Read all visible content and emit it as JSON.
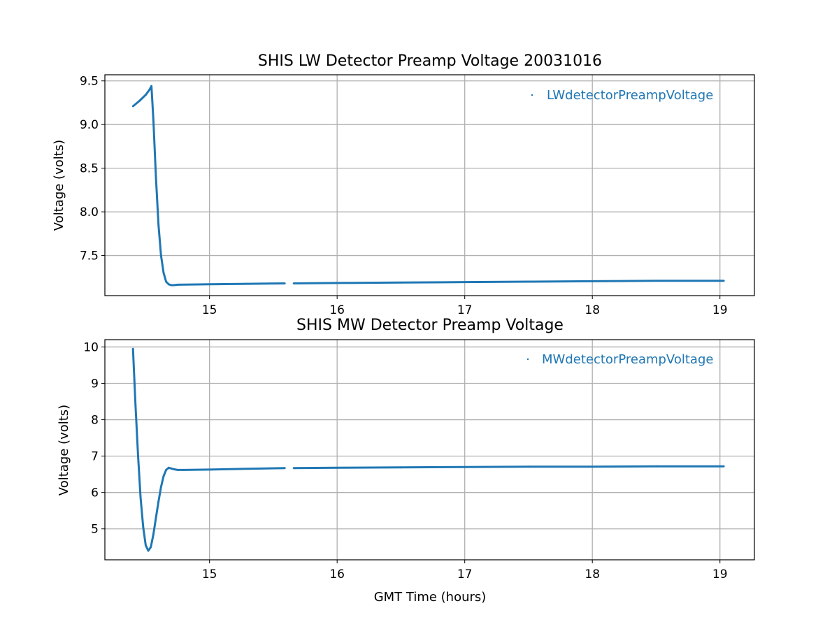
{
  "figure": {
    "colors": {
      "series": "#1f77b4",
      "grid": "#b0b0b0",
      "axes": "#000000",
      "background": "#ffffff"
    }
  },
  "chart_data": [
    {
      "type": "scatter",
      "title": "SHIS LW Detector Preamp Voltage 20031016",
      "xlabel": "",
      "ylabel": "Voltage (volts)",
      "xlim": [
        14.18,
        19.27
      ],
      "ylim": [
        7.04,
        9.57
      ],
      "xticks": [
        15,
        16,
        17,
        18,
        19
      ],
      "yticks": [
        7.5,
        8.0,
        8.5,
        9.0,
        9.5
      ],
      "xtick_labels": [
        "15",
        "16",
        "17",
        "18",
        "19"
      ],
      "ytick_labels": [
        "7.5",
        "8.0",
        "8.5",
        "9.0",
        "9.5"
      ],
      "grid": true,
      "legend_position": "top-right",
      "series": [
        {
          "name": "LWdetectorPreampVoltage",
          "color": "#1f77b4",
          "gaps": [
            [
              15.59,
              15.66
            ]
          ],
          "x": [
            14.4,
            14.45,
            14.5,
            14.53,
            14.545,
            14.56,
            14.58,
            14.6,
            14.62,
            14.64,
            14.66,
            14.68,
            14.7,
            14.72,
            14.75,
            15.0,
            15.3,
            15.59,
            15.66,
            16.0,
            16.5,
            17.0,
            17.5,
            18.0,
            18.5,
            19.03
          ],
          "y": [
            9.21,
            9.27,
            9.34,
            9.4,
            9.44,
            9.05,
            8.4,
            7.85,
            7.5,
            7.3,
            7.2,
            7.17,
            7.16,
            7.16,
            7.165,
            7.17,
            7.175,
            7.18,
            7.18,
            7.185,
            7.19,
            7.195,
            7.2,
            7.205,
            7.21,
            7.21
          ],
          "band": 0.018
        }
      ]
    },
    {
      "type": "scatter",
      "title": "SHIS MW Detector Preamp Voltage",
      "xlabel": "GMT Time (hours)",
      "ylabel": "Voltage (volts)",
      "xlim": [
        14.18,
        19.27
      ],
      "ylim": [
        4.15,
        10.2
      ],
      "xticks": [
        15,
        16,
        17,
        18,
        19
      ],
      "yticks": [
        5,
        6,
        7,
        8,
        9,
        10
      ],
      "xtick_labels": [
        "15",
        "16",
        "17",
        "18",
        "19"
      ],
      "ytick_labels": [
        "5",
        "6",
        "7",
        "8",
        "9",
        "10"
      ],
      "grid": true,
      "legend_position": "top-right",
      "series": [
        {
          "name": "MWdetectorPreampVoltage",
          "color": "#1f77b4",
          "gaps": [
            [
              15.59,
              15.66
            ]
          ],
          "x": [
            14.4,
            14.42,
            14.44,
            14.46,
            14.48,
            14.5,
            14.52,
            14.54,
            14.56,
            14.58,
            14.6,
            14.62,
            14.64,
            14.66,
            14.68,
            14.7,
            14.72,
            14.75,
            14.8,
            15.0,
            15.3,
            15.59,
            15.66,
            16.0,
            16.5,
            17.0,
            17.5,
            18.0,
            18.5,
            19.03
          ],
          "y": [
            9.95,
            8.4,
            7.0,
            5.85,
            5.05,
            4.55,
            4.4,
            4.5,
            4.85,
            5.3,
            5.75,
            6.15,
            6.45,
            6.62,
            6.68,
            6.66,
            6.64,
            6.62,
            6.62,
            6.63,
            6.65,
            6.67,
            6.67,
            6.68,
            6.69,
            6.7,
            6.71,
            6.71,
            6.72,
            6.72
          ],
          "band": 0.04
        }
      ]
    }
  ]
}
